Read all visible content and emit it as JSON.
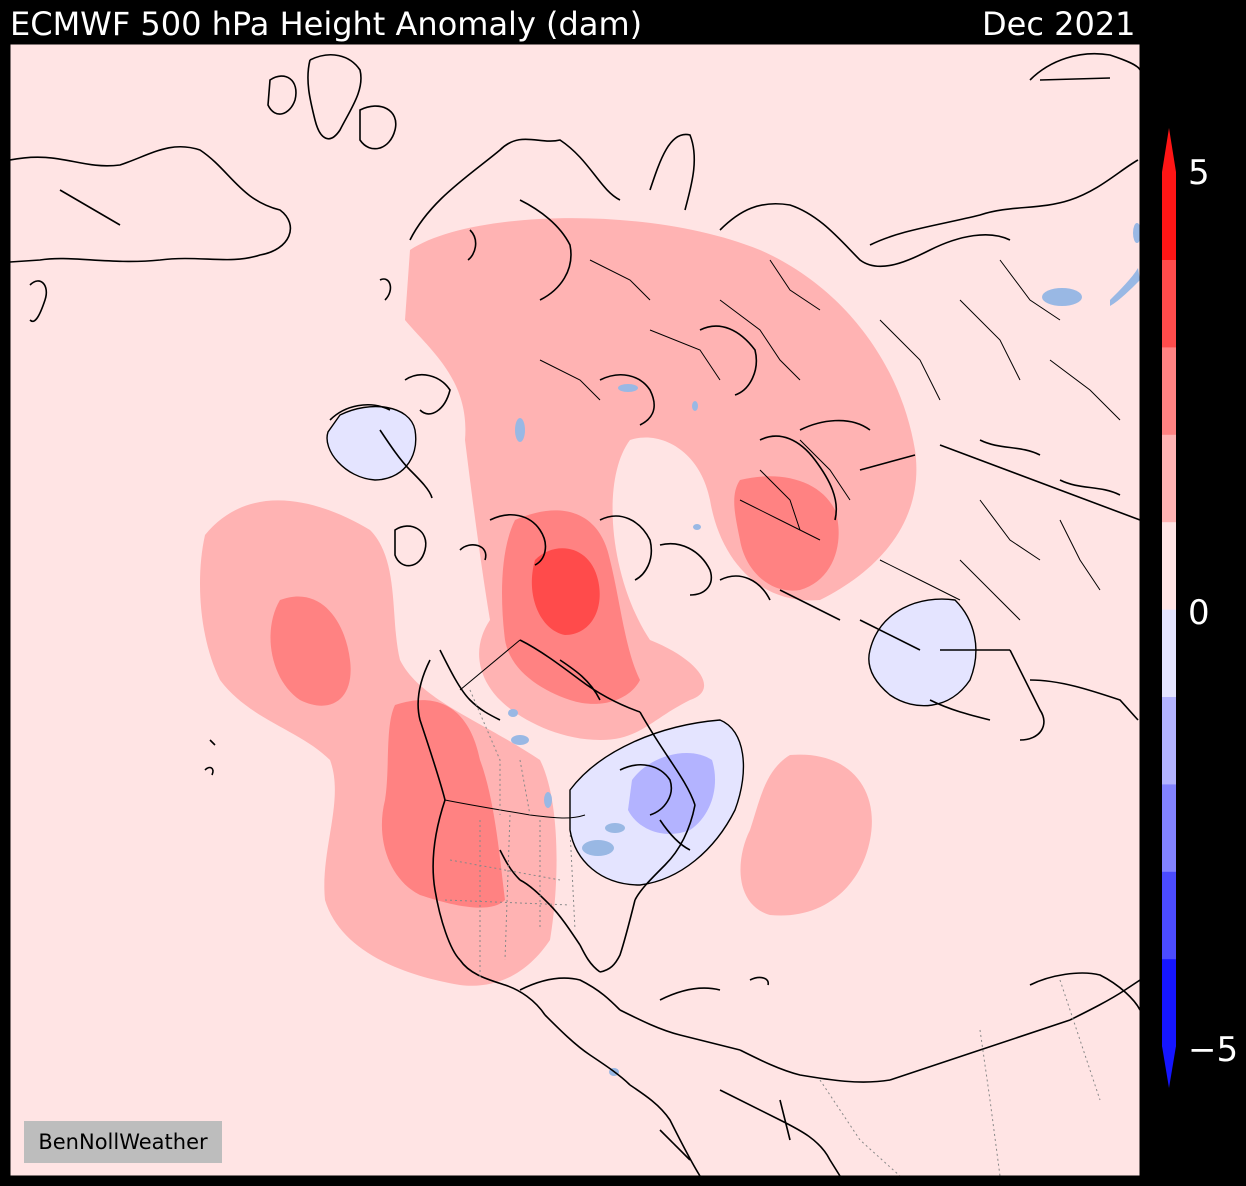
{
  "title": {
    "left": "ECMWF 500 hPa Height Anomaly (dam)",
    "right": "Dec 2021"
  },
  "colorbar": {
    "min": -5,
    "max": 5,
    "tick_labels": [
      "5",
      "0",
      "−5"
    ],
    "colors": [
      "#1515ff",
      "#4b4bff",
      "#8282ff",
      "#b3b3ff",
      "#e4e4ff",
      "#ffe4e4",
      "#ffb3b3",
      "#ff8282",
      "#ff4b4b",
      "#ff1515"
    ]
  },
  "map": {
    "background": "#ffe4e4",
    "water": "#99b8e4",
    "coast": "#000000"
  },
  "credit": "BenNollWeather"
}
